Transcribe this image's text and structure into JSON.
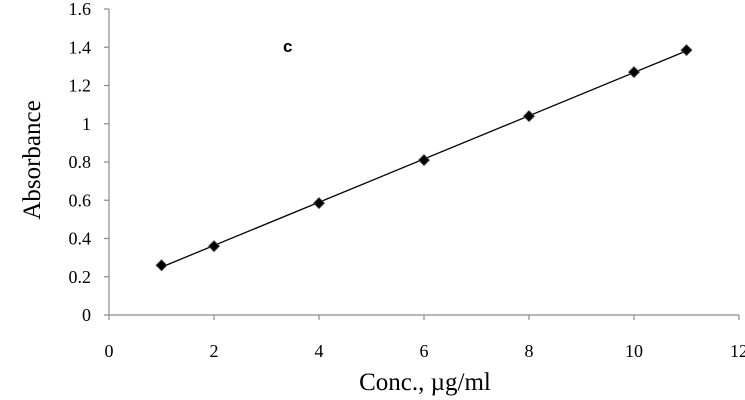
{
  "chart_data": {
    "type": "scatter",
    "title": "",
    "xlabel": "Conc., µg/ml",
    "ylabel": "Absorbance",
    "xlim": [
      0,
      12
    ],
    "ylim": [
      0,
      1.6
    ],
    "x_ticks": [
      0,
      2,
      4,
      6,
      8,
      10,
      12
    ],
    "y_ticks": [
      0,
      0.2,
      0.4,
      0.6,
      0.8,
      1,
      1.2,
      1.4,
      1.6
    ],
    "x_tick_labels": [
      "0",
      "2",
      "4",
      "6",
      "8",
      "10",
      "12"
    ],
    "y_tick_labels": [
      "0",
      "0.2",
      "0.4",
      "0.6",
      "0.8",
      "1",
      "1.2",
      "1.4",
      "1.6"
    ],
    "grid": false,
    "legend": "none",
    "annotation": "c",
    "series": [
      {
        "marker": "diamond",
        "color": "#000000",
        "trendline": "linear",
        "x": [
          1,
          2,
          4,
          6,
          8,
          10,
          11
        ],
        "y": [
          0.26,
          0.36,
          0.585,
          0.81,
          1.04,
          1.27,
          1.385
        ]
      }
    ]
  }
}
